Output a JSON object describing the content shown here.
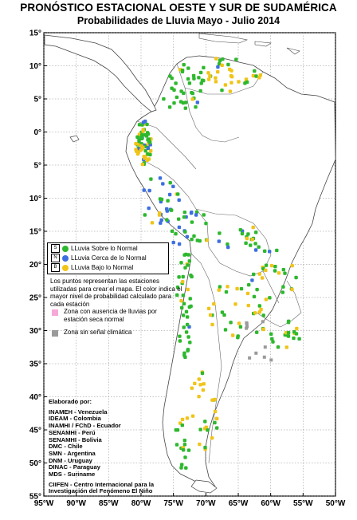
{
  "header": {
    "title": "PRONÓSTICO ESTACIONAL OESTE Y SUR DE SUDAMÉRICA",
    "subtitle": "Probabilidades de Lluvia Mayo - Julio 2014"
  },
  "axes": {
    "lat_labels": [
      "15°",
      "10°",
      "5°",
      "0°",
      "5°",
      "10°",
      "15°",
      "20°",
      "25°",
      "30°",
      "35°",
      "40°",
      "45°",
      "50°",
      "55°"
    ],
    "lon_labels": [
      "95°W",
      "90°W",
      "85°W",
      "80°W",
      "75°W",
      "70°W",
      "65°W",
      "60°W",
      "55°W",
      "50°W"
    ]
  },
  "legend": {
    "items": [
      {
        "key": "S",
        "label": "LLuvia Sobre lo Normal",
        "color": "#2db82d"
      },
      {
        "key": "N",
        "label": "LLuvia Cerca de lo Normal",
        "color": "#3d6fe0"
      },
      {
        "key": "B",
        "label": "LLuvia Bajo lo Normal",
        "color": "#f0c419"
      }
    ],
    "note": "Los puntos representan las estaciones utilizadas para crear el mapa. El color indica el mayor nivel de probabilidad calculado para cada estación",
    "dry_zone": {
      "label": "Zona con ausencia de lluvias por estación seca normal",
      "color": "#f7a8d8"
    },
    "no_signal": {
      "label": "Zona sin señal climática",
      "color": "#9a9a9a"
    }
  },
  "credits": {
    "heading": "Elaborado por:",
    "lines": [
      "INAMEH - Venezuela",
      "IDEAM - Colombia",
      "INAMHI / FChD - Ecuador",
      "SENAMHI - Perú",
      "SENAMHI - Bolivia",
      "DMC - Chile",
      "SMN - Argentina",
      "DNM - Uruguay",
      "DINAC - Paraguay",
      "MDS - Suriname"
    ],
    "ciifen": "CIIFEN - Centro Internacional para la Investigación del Fenómeno El Niño"
  },
  "colors": {
    "above": "#2db82d",
    "near": "#3d6fe0",
    "below": "#f0c419",
    "no_signal": "#9a9a9a",
    "land_fill": "#ffffff"
  }
}
